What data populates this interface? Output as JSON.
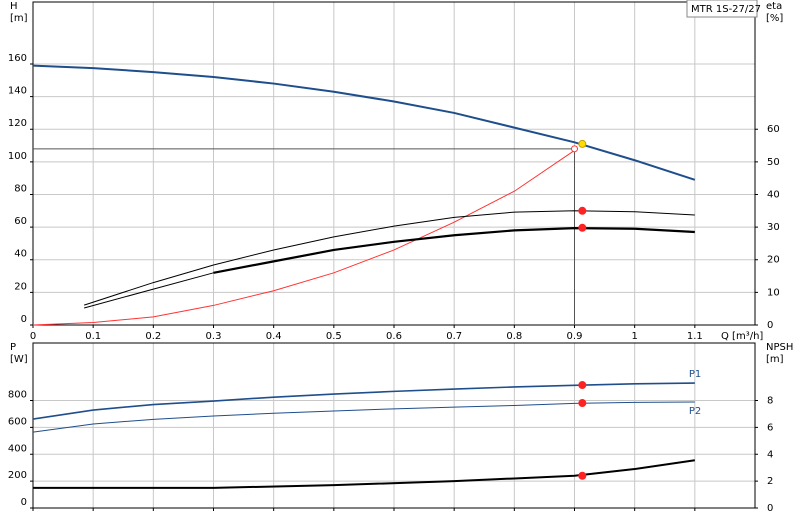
{
  "chart_data": [
    {
      "type": "line",
      "annotation": "MTR 1S-27/27",
      "y_label": [
        "H",
        "[m]"
      ],
      "y2_label": [
        "eta",
        "[%]"
      ],
      "x_label": "Q [m³/h]",
      "xlim": [
        0,
        1.2
      ],
      "xticks": [
        0,
        0.1,
        0.2,
        0.3,
        0.4,
        0.5,
        0.6,
        0.7,
        0.8,
        0.9,
        1,
        1.1
      ],
      "ylim": [
        0,
        198
      ],
      "yticks": [
        0,
        20,
        40,
        60,
        80,
        100,
        120,
        140,
        160
      ],
      "y2lim": [
        0,
        99
      ],
      "y2ticks": [
        0,
        10,
        20,
        30,
        40,
        50,
        60
      ],
      "grid": true,
      "reference": {
        "x": 0.9,
        "y": 108
      },
      "series": [
        {
          "color": "#1f4e8c",
          "width": 2,
          "axis": "y",
          "x": [
            0,
            0.1,
            0.2,
            0.3,
            0.4,
            0.5,
            0.6,
            0.7,
            0.8,
            0.9,
            1,
            1.1
          ],
          "values": [
            159,
            157.5,
            155,
            152,
            148,
            143,
            137,
            130,
            121,
            112,
            101,
            89
          ],
          "marker": {
            "x": 0.913,
            "value": 111,
            "color": "#ffdd00"
          }
        },
        {
          "color": "#ff3333",
          "width": 1,
          "axis": "y",
          "x": [
            0,
            0.1,
            0.2,
            0.3,
            0.4,
            0.5,
            0.6,
            0.7,
            0.8,
            0.9
          ],
          "values": [
            0,
            1.5,
            5,
            12,
            21,
            32,
            46,
            63,
            82,
            107
          ],
          "marker": {
            "x": 0.9,
            "value": 108,
            "color": "#ff3333",
            "open": true
          }
        },
        {
          "color": "#000000",
          "width": 1,
          "axis": "y2",
          "x": [
            0.085,
            0.2,
            0.3,
            0.4,
            0.5,
            0.6,
            0.7,
            0.8,
            0.9,
            1,
            1.1
          ],
          "values": [
            6.1,
            13,
            18.4,
            23,
            27,
            30.3,
            33,
            34.6,
            35,
            34.7,
            33.7
          ],
          "marker": {
            "x": 0.913,
            "value": 35,
            "color": "#ff2222"
          }
        },
        {
          "color": "#000000",
          "width": 1,
          "axis": "y2",
          "x": [
            0.085,
            0.2,
            0.3
          ],
          "values": [
            5.2,
            11,
            16
          ]
        },
        {
          "color": "#000000",
          "width": 2.2,
          "axis": "y2",
          "x": [
            0.3,
            0.4,
            0.5,
            0.6,
            0.7,
            0.8,
            0.9,
            1,
            1.1
          ],
          "values": [
            16,
            19.5,
            23,
            25.5,
            27.5,
            29,
            29.7,
            29.5,
            28.5
          ],
          "marker": {
            "x": 0.913,
            "value": 29.8,
            "color": "#ff2222"
          }
        }
      ]
    },
    {
      "type": "line",
      "y_label": [
        "P",
        "[W]"
      ],
      "y2_label": [
        "NPSH",
        "[m]"
      ],
      "xlim": [
        0,
        1.2
      ],
      "xticks": [
        0,
        0.1,
        0.2,
        0.3,
        0.4,
        0.5,
        0.6,
        0.7,
        0.8,
        0.9,
        1,
        1.1
      ],
      "ylim": [
        0,
        1228
      ],
      "yticks": [
        0,
        200,
        400,
        600,
        800
      ],
      "y2lim": [
        0,
        12.28
      ],
      "y2ticks": [
        0,
        2,
        4,
        6,
        8
      ],
      "grid": true,
      "series": [
        {
          "name": "P1",
          "color": "#1f4e8c",
          "width": 1.6,
          "axis": "y",
          "x": [
            0,
            0.1,
            0.2,
            0.3,
            0.4,
            0.5,
            0.6,
            0.7,
            0.8,
            0.9,
            1,
            1.1
          ],
          "values": [
            662,
            729,
            770,
            796,
            825,
            848,
            868,
            885,
            901,
            913,
            924,
            930
          ],
          "marker": {
            "x": 0.913,
            "value": 915,
            "color": "#ff2222"
          }
        },
        {
          "name": "P2",
          "color": "#1f4e8c",
          "width": 1,
          "axis": "y",
          "x": [
            0,
            0.1,
            0.2,
            0.3,
            0.4,
            0.5,
            0.6,
            0.7,
            0.8,
            0.9,
            1,
            1.1
          ],
          "values": [
            565,
            625,
            660,
            685,
            705,
            722,
            738,
            751,
            763,
            779,
            786,
            789
          ],
          "marker": {
            "x": 0.913,
            "value": 781,
            "color": "#ff2222"
          }
        },
        {
          "color": "#000000",
          "width": 2,
          "axis": "y2",
          "x": [
            0,
            0.3,
            0.5,
            0.7,
            0.8,
            0.9,
            1,
            1.1
          ],
          "values": [
            1.5,
            1.5,
            1.7,
            2,
            2.2,
            2.4,
            2.9,
            3.55
          ],
          "marker": {
            "x": 0.913,
            "value": 2.4,
            "color": "#ff2222"
          }
        }
      ]
    }
  ]
}
